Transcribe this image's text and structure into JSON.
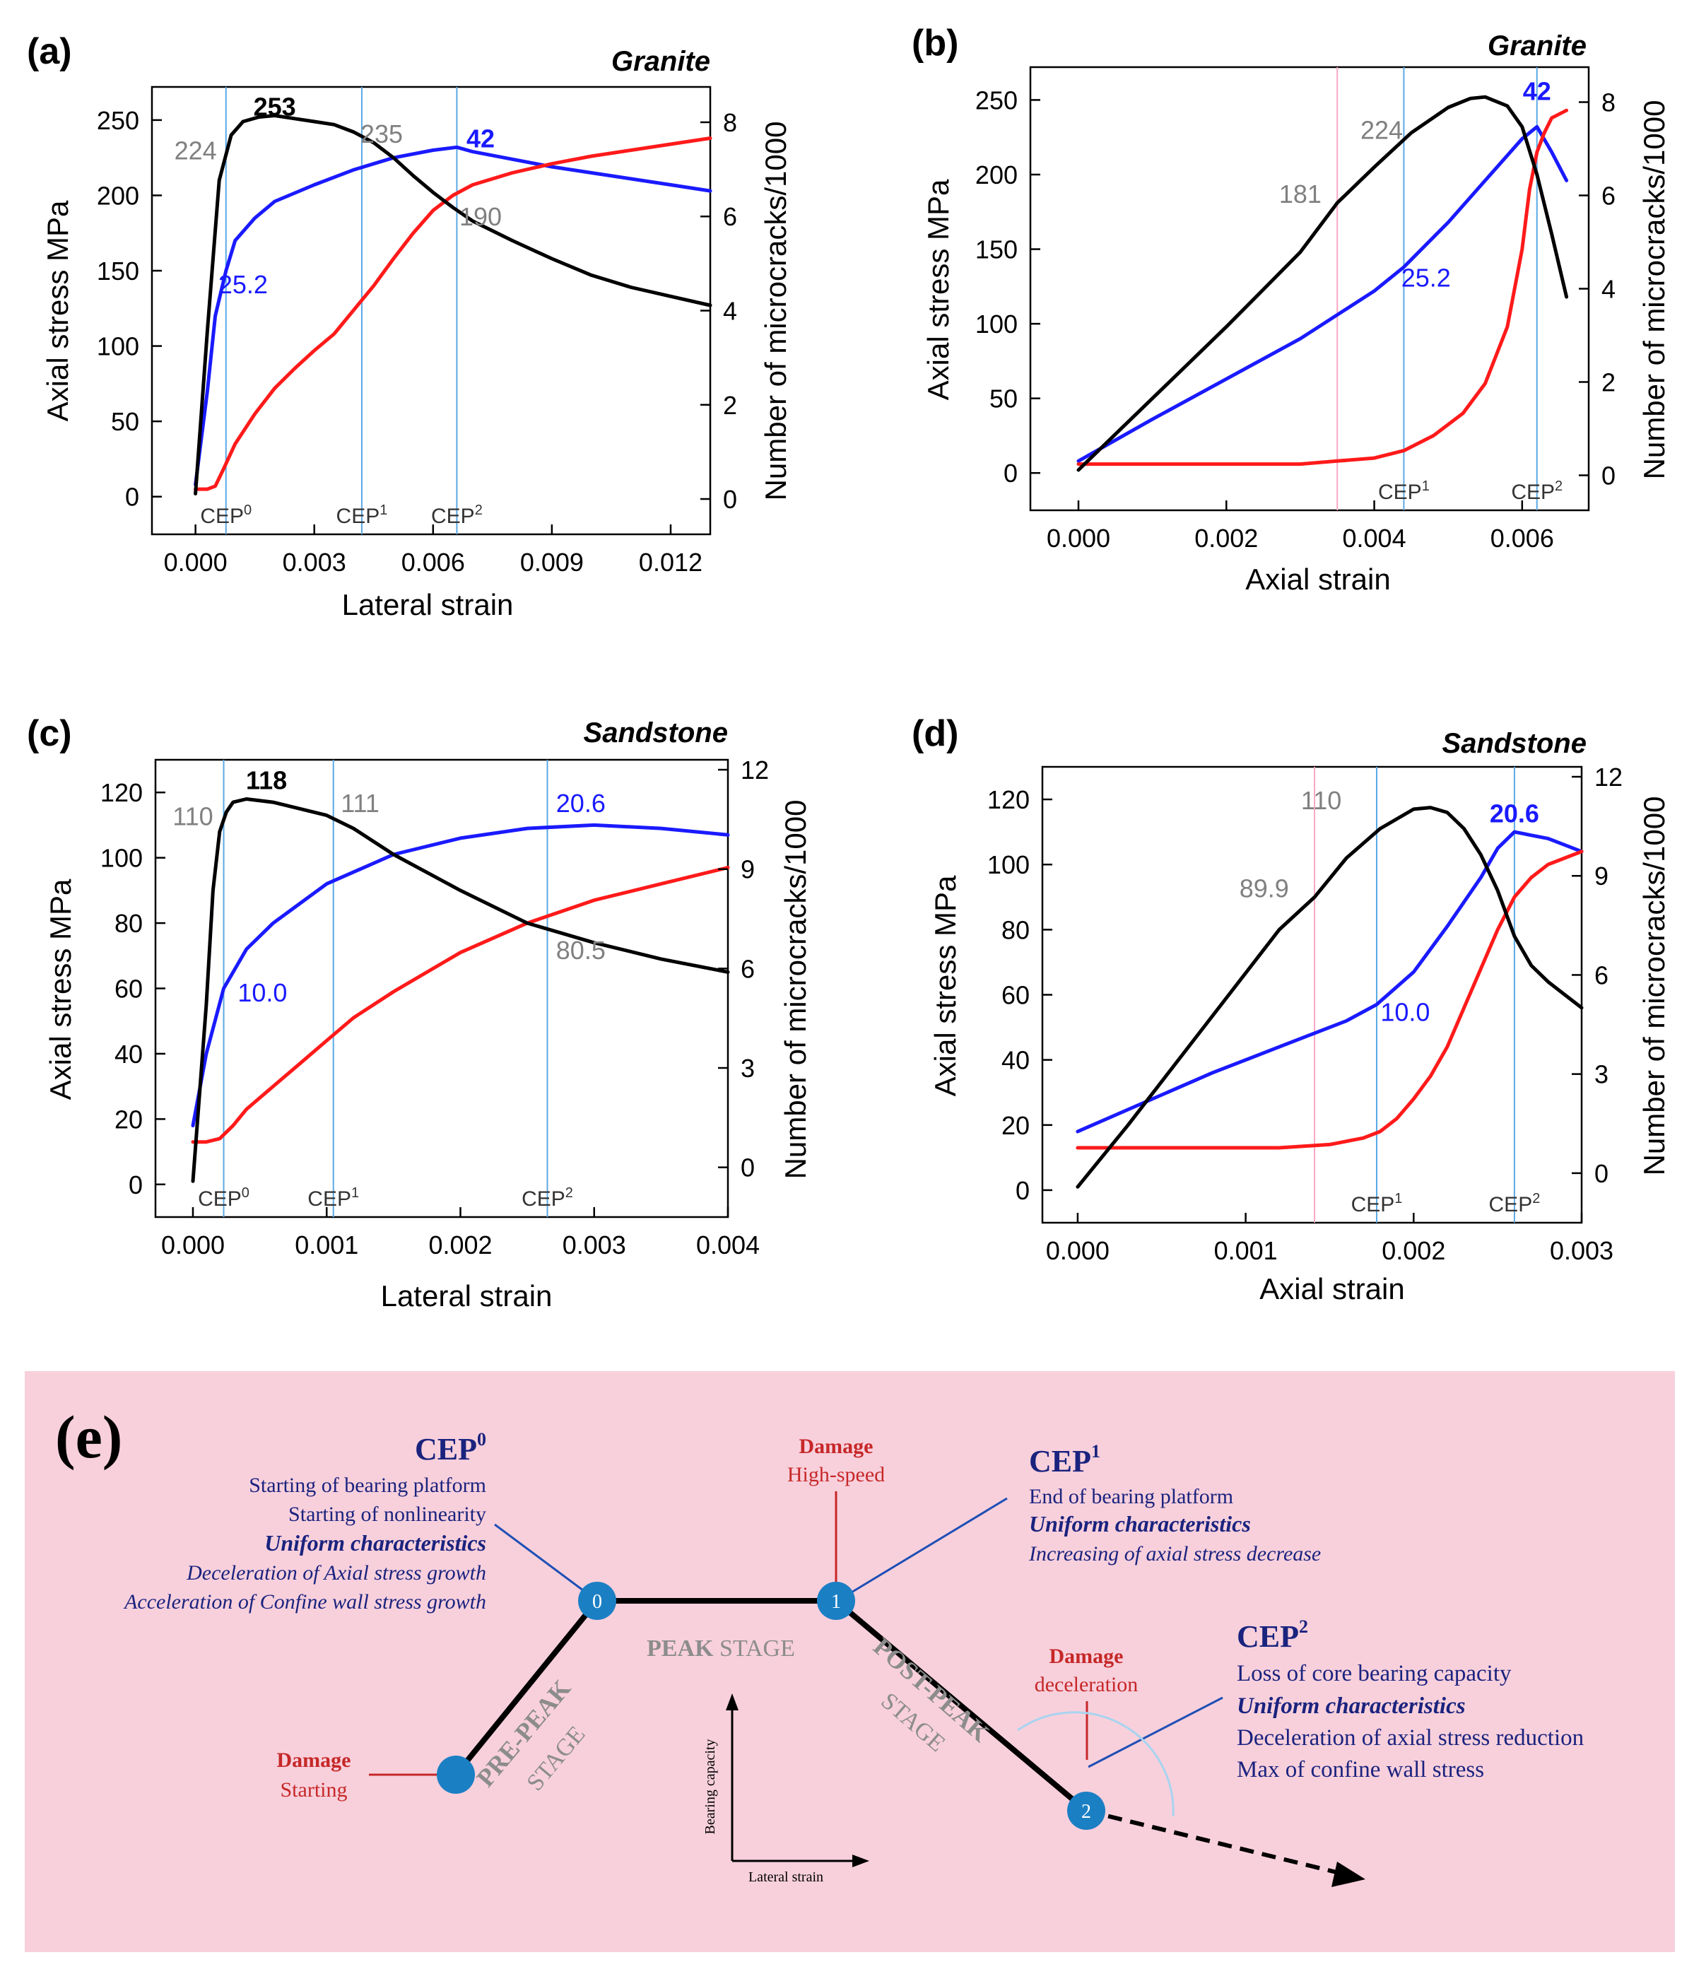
{
  "chart_data": [
    {
      "panel_label": "(a)",
      "title": "Granite",
      "type": "line",
      "xlabel": "Lateral strain",
      "ylabel": "Axial stress MPa",
      "y2label": "Number of microcracks/1000",
      "xlim": [
        -0.0011,
        0.013
      ],
      "ylim": [
        -25,
        272
      ],
      "y2lim": [
        -0.75,
        8.75
      ],
      "xticks": [
        0.0,
        0.003,
        0.006,
        0.009,
        0.012
      ],
      "xtick_labels": [
        "0.000",
        "0.003",
        "0.006",
        "0.009",
        "0.012"
      ],
      "yticks": [
        0,
        50,
        100,
        150,
        200,
        250
      ],
      "ytick_labels": [
        "0",
        "50",
        "100",
        "150",
        "200",
        "250"
      ],
      "y2ticks": [
        0,
        2,
        4,
        6,
        8
      ],
      "y2tick_labels": [
        "0",
        "2",
        "4",
        "6",
        "8"
      ],
      "vlines": [
        {
          "x": 0.00077,
          "label": "CEP0",
          "color": "#5aa9e6"
        },
        {
          "x": 0.0042,
          "label": "CEP1",
          "color": "#5aa9e6"
        },
        {
          "x": 0.0066,
          "label": "CEP2",
          "color": "#5aa9e6"
        }
      ],
      "series": [
        {
          "name": "Axial stress",
          "color": "#000000",
          "axis": "left",
          "x": [
            0.0,
            0.0003,
            0.0006,
            0.0009,
            0.0012,
            0.0016,
            0.002,
            0.0025,
            0.003,
            0.0035,
            0.004,
            0.0045,
            0.005,
            0.0055,
            0.006,
            0.0065,
            0.007,
            0.008,
            0.009,
            0.01,
            0.011,
            0.012,
            0.013
          ],
          "y": [
            2,
            110,
            210,
            240,
            249,
            252,
            253,
            251,
            249,
            247,
            242,
            235,
            225,
            213,
            202,
            192,
            183,
            170,
            158,
            147,
            139,
            133,
            127
          ]
        },
        {
          "name": "Microcracks (CEP reference)",
          "color": "#1a1aff",
          "axis": "left",
          "x": [
            0.0,
            0.0003,
            0.0005,
            0.00077,
            0.001,
            0.0015,
            0.002,
            0.003,
            0.004,
            0.005,
            0.006,
            0.0066,
            0.007,
            0.008,
            0.009,
            0.01,
            0.011,
            0.012,
            0.013
          ],
          "y": [
            8,
            70,
            120,
            150,
            170,
            185,
            196,
            207,
            217,
            225,
            230,
            232,
            229,
            224,
            219,
            215,
            211,
            207,
            203
          ]
        },
        {
          "name": "Microcracks",
          "color": "#ff1a1a",
          "axis": "left",
          "x": [
            0.0,
            0.0003,
            0.0005,
            0.0007,
            0.001,
            0.0015,
            0.002,
            0.0025,
            0.003,
            0.0035,
            0.004,
            0.0045,
            0.005,
            0.0055,
            0.006,
            0.0065,
            0.007,
            0.008,
            0.009,
            0.01,
            0.011,
            0.012,
            0.013
          ],
          "y": [
            5,
            5,
            7,
            18,
            35,
            55,
            72,
            85,
            97,
            108,
            124,
            140,
            158,
            175,
            190,
            200,
            207,
            215,
            221,
            226,
            230,
            234,
            238
          ]
        }
      ],
      "annotations": [
        {
          "text": "224",
          "x": 0.0,
          "y": 224,
          "color": "#808080",
          "bold": false
        },
        {
          "text": "253",
          "x": 0.002,
          "y": 253,
          "color": "#000000",
          "bold": true
        },
        {
          "text": "235",
          "x": 0.0047,
          "y": 235,
          "color": "#808080",
          "bold": false
        },
        {
          "text": "42",
          "x": 0.0072,
          "y": 232,
          "color": "#1a1aff",
          "bold": true
        },
        {
          "text": "25.2",
          "x": 0.0012,
          "y": 135,
          "color": "#1a1aff",
          "bold": false
        },
        {
          "text": "190",
          "x": 0.0072,
          "y": 180,
          "color": "#808080",
          "bold": false
        }
      ]
    },
    {
      "panel_label": "(b)",
      "title": "Granite",
      "type": "line",
      "xlabel": "Axial strain",
      "ylabel": "Axial stress MPa",
      "y2label": "Number of microcracks/1000",
      "xlim": [
        -0.00065,
        0.0069
      ],
      "ylim": [
        -25,
        272
      ],
      "y2lim": [
        -0.75,
        8.75
      ],
      "xticks": [
        0.0,
        0.002,
        0.004,
        0.006
      ],
      "xtick_labels": [
        "0.000",
        "0.002",
        "0.004",
        "0.006"
      ],
      "yticks": [
        0,
        50,
        100,
        150,
        200,
        250
      ],
      "ytick_labels": [
        "0",
        "50",
        "100",
        "150",
        "200",
        "250"
      ],
      "y2ticks": [
        0,
        2,
        4,
        6,
        8
      ],
      "y2tick_labels": [
        "0",
        "2",
        "4",
        "6",
        "8"
      ],
      "vlines": [
        {
          "x": 0.0035,
          "label": "",
          "color": "#f7a6c6"
        },
        {
          "x": 0.0044,
          "label": "CEP1",
          "color": "#5aa9e6"
        },
        {
          "x": 0.0062,
          "label": "CEP2",
          "color": "#5aa9e6"
        }
      ],
      "series": [
        {
          "name": "Axial stress",
          "color": "#000000",
          "axis": "left",
          "x": [
            0.0,
            0.0005,
            0.001,
            0.0015,
            0.002,
            0.0025,
            0.003,
            0.0035,
            0.004,
            0.0045,
            0.005,
            0.0053,
            0.0055,
            0.0058,
            0.006,
            0.0062,
            0.0064,
            0.0066
          ],
          "y": [
            2,
            26,
            50,
            74,
            98,
            123,
            148,
            181,
            205,
            228,
            245,
            251,
            252,
            246,
            232,
            200,
            160,
            118
          ]
        },
        {
          "name": "Microcracks (CEP reference)",
          "color": "#1a1aff",
          "axis": "left",
          "x": [
            0.0,
            0.001,
            0.002,
            0.003,
            0.004,
            0.0044,
            0.005,
            0.0055,
            0.006,
            0.0062,
            0.0064,
            0.0066
          ],
          "y": [
            8,
            36,
            63,
            90,
            122,
            138,
            168,
            196,
            224,
            232,
            215,
            196
          ]
        },
        {
          "name": "Microcracks",
          "color": "#ff1a1a",
          "axis": "left",
          "x": [
            0.0,
            0.001,
            0.002,
            0.003,
            0.0035,
            0.004,
            0.0044,
            0.0048,
            0.0052,
            0.0055,
            0.0058,
            0.006,
            0.0061,
            0.0062,
            0.0063,
            0.0064,
            0.0066
          ],
          "y": [
            6,
            6,
            6,
            6,
            8,
            10,
            15,
            25,
            40,
            60,
            98,
            150,
            190,
            215,
            228,
            238,
            243
          ]
        }
      ],
      "annotations": [
        {
          "text": "224",
          "x": 0.0041,
          "y": 224,
          "color": "#808080",
          "bold": false
        },
        {
          "text": "181",
          "x": 0.003,
          "y": 181,
          "color": "#808080",
          "bold": false
        },
        {
          "text": "42",
          "x": 0.0062,
          "y": 250,
          "color": "#1a1aff",
          "bold": true
        },
        {
          "text": "25.2",
          "x": 0.0047,
          "y": 125,
          "color": "#1a1aff",
          "bold": false
        }
      ]
    },
    {
      "panel_label": "(c)",
      "title": "Sandstone",
      "type": "line",
      "xlabel": "Lateral strain",
      "ylabel": "Axial stress MPa",
      "y2label": "Number of microcracks/1000",
      "xlim": [
        -0.00028,
        0.004
      ],
      "ylim": [
        -10,
        130
      ],
      "y2lim": [
        -1.5,
        12.3
      ],
      "xticks": [
        0.0,
        0.001,
        0.002,
        0.003,
        0.004
      ],
      "xtick_labels": [
        "0.000",
        "0.001",
        "0.002",
        "0.003",
        "0.004"
      ],
      "yticks": [
        0,
        20,
        40,
        60,
        80,
        100,
        120
      ],
      "ytick_labels": [
        "0",
        "20",
        "40",
        "60",
        "80",
        "100",
        "120"
      ],
      "y2ticks": [
        0,
        3,
        6,
        9,
        12
      ],
      "y2tick_labels": [
        "0",
        "3",
        "6",
        "9",
        "12"
      ],
      "vlines": [
        {
          "x": 0.00023,
          "label": "CEP0",
          "color": "#5aa9e6"
        },
        {
          "x": 0.00105,
          "label": "CEP1",
          "color": "#5aa9e6"
        },
        {
          "x": 0.00265,
          "label": "CEP2",
          "color": "#5aa9e6"
        }
      ],
      "series": [
        {
          "name": "Axial stress",
          "color": "#000000",
          "axis": "left",
          "x": [
            0.0,
            0.0001,
            0.00015,
            0.0002,
            0.00025,
            0.0003,
            0.0004,
            0.0006,
            0.0008,
            0.001,
            0.0012,
            0.0015,
            0.002,
            0.0025,
            0.003,
            0.0035,
            0.004
          ],
          "y": [
            1,
            55,
            90,
            108,
            114,
            117,
            118,
            117,
            115,
            113,
            109,
            101,
            90,
            80,
            74,
            69,
            65
          ]
        },
        {
          "name": "Microcracks (CEP reference)",
          "color": "#1a1aff",
          "axis": "left",
          "x": [
            0.0,
            0.0001,
            0.00023,
            0.0004,
            0.0006,
            0.0008,
            0.001,
            0.0015,
            0.002,
            0.0025,
            0.003,
            0.0035,
            0.004
          ],
          "y": [
            18,
            40,
            60,
            72,
            80,
            86,
            92,
            101,
            106,
            109,
            110,
            109,
            107
          ]
        },
        {
          "name": "Microcracks",
          "color": "#ff1a1a",
          "axis": "left",
          "x": [
            0.0,
            0.0001,
            0.0002,
            0.0003,
            0.0004,
            0.0006,
            0.0008,
            0.001,
            0.0012,
            0.0015,
            0.002,
            0.0025,
            0.003,
            0.0035,
            0.004
          ],
          "y": [
            13,
            13,
            14,
            18,
            23,
            30,
            37,
            44,
            51,
            59,
            71,
            80,
            87,
            92,
            97
          ]
        }
      ],
      "annotations": [
        {
          "text": "110",
          "x": 0.0,
          "y": 110,
          "color": "#808080",
          "bold": false
        },
        {
          "text": "118",
          "x": 0.00055,
          "y": 121,
          "color": "#000000",
          "bold": true
        },
        {
          "text": "111",
          "x": 0.00125,
          "y": 114,
          "color": "#808080",
          "bold": false
        },
        {
          "text": "20.6",
          "x": 0.0029,
          "y": 114,
          "color": "#1a1aff",
          "bold": false
        },
        {
          "text": "10.0",
          "x": 0.00052,
          "y": 56,
          "color": "#1a1aff",
          "bold": false
        },
        {
          "text": "80.5",
          "x": 0.0029,
          "y": 69,
          "color": "#808080",
          "bold": false
        }
      ]
    },
    {
      "panel_label": "(d)",
      "title": "Sandstone",
      "type": "line",
      "xlabel": "Axial strain",
      "ylabel": "Axial stress MPa",
      "y2label": "Number of microcracks/1000",
      "xlim": [
        -0.00021,
        0.003
      ],
      "ylim": [
        -10,
        130
      ],
      "y2lim": [
        -1.5,
        12.3
      ],
      "xticks": [
        0.0,
        0.001,
        0.002,
        0.003
      ],
      "xtick_labels": [
        "0.000",
        "0.001",
        "0.002",
        "0.003"
      ],
      "yticks": [
        0,
        20,
        40,
        60,
        80,
        100,
        120
      ],
      "ytick_labels": [
        "0",
        "20",
        "40",
        "60",
        "80",
        "100",
        "120"
      ],
      "y2ticks": [
        0,
        3,
        6,
        9,
        12
      ],
      "y2tick_labels": [
        "0",
        "3",
        "6",
        "9",
        "12"
      ],
      "vlines": [
        {
          "x": 0.00141,
          "label": "",
          "color": "#f7a6c6"
        },
        {
          "x": 0.00178,
          "label": "CEP1",
          "color": "#5aa9e6"
        },
        {
          "x": 0.0026,
          "label": "CEP2",
          "color": "#5aa9e6"
        }
      ],
      "series": [
        {
          "name": "Axial stress",
          "color": "#000000",
          "axis": "left",
          "x": [
            0.0,
            0.0003,
            0.0006,
            0.0009,
            0.0012,
            0.00141,
            0.0016,
            0.0018,
            0.002,
            0.0021,
            0.0022,
            0.0023,
            0.0024,
            0.0025,
            0.0026,
            0.0027,
            0.0028,
            0.0029,
            0.003
          ],
          "y": [
            1,
            20,
            40,
            60,
            80,
            90,
            102,
            111,
            117,
            117.5,
            116,
            111,
            103,
            92,
            78,
            69,
            64,
            60,
            56
          ]
        },
        {
          "name": "Microcracks (CEP reference)",
          "color": "#1a1aff",
          "axis": "left",
          "x": [
            0.0,
            0.0004,
            0.0008,
            0.0012,
            0.0016,
            0.00178,
            0.002,
            0.0022,
            0.0024,
            0.0025,
            0.0026,
            0.0027,
            0.0028,
            0.0029,
            0.003
          ],
          "y": [
            18,
            27,
            36,
            44,
            52,
            57,
            67,
            81,
            96,
            105,
            110,
            109,
            108,
            106,
            104
          ]
        },
        {
          "name": "Microcracks",
          "color": "#ff1a1a",
          "axis": "left",
          "x": [
            0.0,
            0.0004,
            0.0008,
            0.0012,
            0.0015,
            0.0017,
            0.0018,
            0.0019,
            0.002,
            0.0021,
            0.0022,
            0.0023,
            0.0024,
            0.0025,
            0.0026,
            0.0027,
            0.0028,
            0.0029,
            0.003
          ],
          "y": [
            13,
            13,
            13,
            13,
            14,
            16,
            18,
            22,
            28,
            35,
            44,
            56,
            68,
            80,
            90,
            96,
            100,
            102,
            104
          ]
        }
      ],
      "annotations": [
        {
          "text": "110",
          "x": 0.00145,
          "y": 117,
          "color": "#808080",
          "bold": false
        },
        {
          "text": "89.9",
          "x": 0.00111,
          "y": 90,
          "color": "#808080",
          "bold": false
        },
        {
          "text": "20.6",
          "x": 0.0026,
          "y": 113,
          "color": "#1a1aff",
          "bold": true
        },
        {
          "text": "10.0",
          "x": 0.00195,
          "y": 52,
          "color": "#1a1aff",
          "bold": false
        }
      ]
    }
  ],
  "diagram": {
    "panel_label": "(e)",
    "cep0": {
      "title": "CEP",
      "sup": "0",
      "lines": [
        "Starting of bearing platform",
        "Starting of nonlinearity"
      ],
      "uniform": "Uniform characteristics",
      "italic_lines": [
        "Deceleration of Axial stress growth",
        "Acceleration of Confine wall stress growth"
      ]
    },
    "cep1": {
      "title": "CEP",
      "sup": "1",
      "lines": [
        "End of bearing platform"
      ],
      "uniform": "Uniform characteristics",
      "italic_lines": [
        "Increasing of axial stress decrease"
      ]
    },
    "cep2": {
      "title": "CEP",
      "sup": "2",
      "lines": [
        "Loss of core bearing capacity"
      ],
      "uniform": "Uniform characteristics",
      "plain_lines": [
        "Deceleration of axial stress reduction",
        "Max of confine wall stress"
      ]
    },
    "damage_high": {
      "title": "Damage",
      "sub": "High-speed"
    },
    "damage_decel": {
      "title": "Damage",
      "sub": "deceleration"
    },
    "damage_start": {
      "title": "Damage",
      "sub": "Starting"
    },
    "stages": {
      "pre_a": "PRE-PEAK",
      "pre_b": "STAGE",
      "peak_a": "PEAK",
      "peak_b": " STAGE",
      "post_a": "POST-PEAK",
      "post_b": "STAGE"
    },
    "nodes": [
      "0",
      "1",
      "2"
    ],
    "inset": {
      "ylabel": "Bearing capacity",
      "xlabel": "Lateral strain"
    },
    "colors": {
      "background": "#f8d0dc",
      "navy": "#1a237e",
      "red": "#c62828",
      "node": "#1b7fc4",
      "stage": "#8c8c8c"
    }
  }
}
